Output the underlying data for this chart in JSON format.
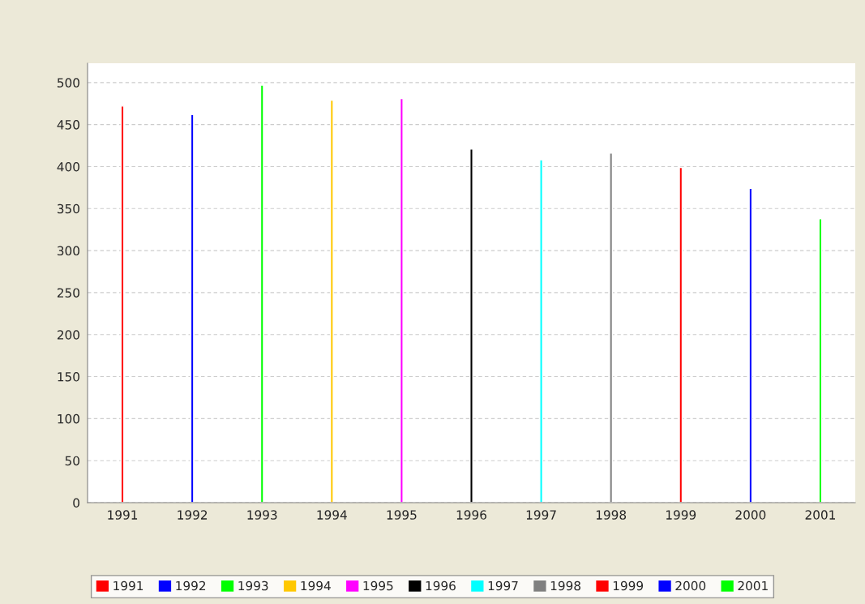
{
  "chart_data": {
    "type": "bar",
    "categories": [
      "1991",
      "1992",
      "1993",
      "1994",
      "1995",
      "1996",
      "1997",
      "1998",
      "1999",
      "2000",
      "2001"
    ],
    "series": [
      {
        "name": "1991",
        "color": "#ff0000",
        "values": [
          472,
          null,
          null,
          null,
          null,
          null,
          null,
          null,
          null,
          null,
          null
        ]
      },
      {
        "name": "1992",
        "color": "#0000ff",
        "values": [
          null,
          462,
          null,
          null,
          null,
          null,
          null,
          null,
          null,
          null,
          null
        ]
      },
      {
        "name": "1993",
        "color": "#00ff00",
        "values": [
          null,
          null,
          497,
          null,
          null,
          null,
          null,
          null,
          null,
          null,
          null
        ]
      },
      {
        "name": "1994",
        "color": "#ffc800",
        "values": [
          null,
          null,
          null,
          479,
          null,
          null,
          null,
          null,
          null,
          null,
          null
        ]
      },
      {
        "name": "1995",
        "color": "#ff00ff",
        "values": [
          null,
          null,
          null,
          null,
          481,
          null,
          null,
          null,
          null,
          null,
          null
        ]
      },
      {
        "name": "1996",
        "color": "#000000",
        "values": [
          null,
          null,
          null,
          null,
          null,
          421,
          null,
          null,
          null,
          null,
          null
        ]
      },
      {
        "name": "1997",
        "color": "#00ffff",
        "values": [
          null,
          null,
          null,
          null,
          null,
          null,
          408,
          null,
          null,
          null,
          null
        ]
      },
      {
        "name": "1998",
        "color": "#808080",
        "values": [
          null,
          null,
          null,
          null,
          null,
          null,
          null,
          416,
          null,
          null,
          null
        ]
      },
      {
        "name": "1999",
        "color": "#ff0000",
        "values": [
          null,
          null,
          null,
          null,
          null,
          null,
          null,
          null,
          399,
          null,
          null
        ]
      },
      {
        "name": "2000",
        "color": "#0000ff",
        "values": [
          null,
          null,
          null,
          null,
          null,
          null,
          null,
          null,
          null,
          374,
          null
        ]
      },
      {
        "name": "2001",
        "color": "#00ff00",
        "values": [
          null,
          null,
          null,
          null,
          null,
          null,
          null,
          null,
          null,
          null,
          338
        ]
      }
    ],
    "ylim": [
      0,
      523
    ],
    "yticks": [
      0,
      50,
      100,
      150,
      200,
      250,
      300,
      350,
      400,
      450,
      500
    ],
    "grid": "y",
    "legend": "bottom"
  }
}
